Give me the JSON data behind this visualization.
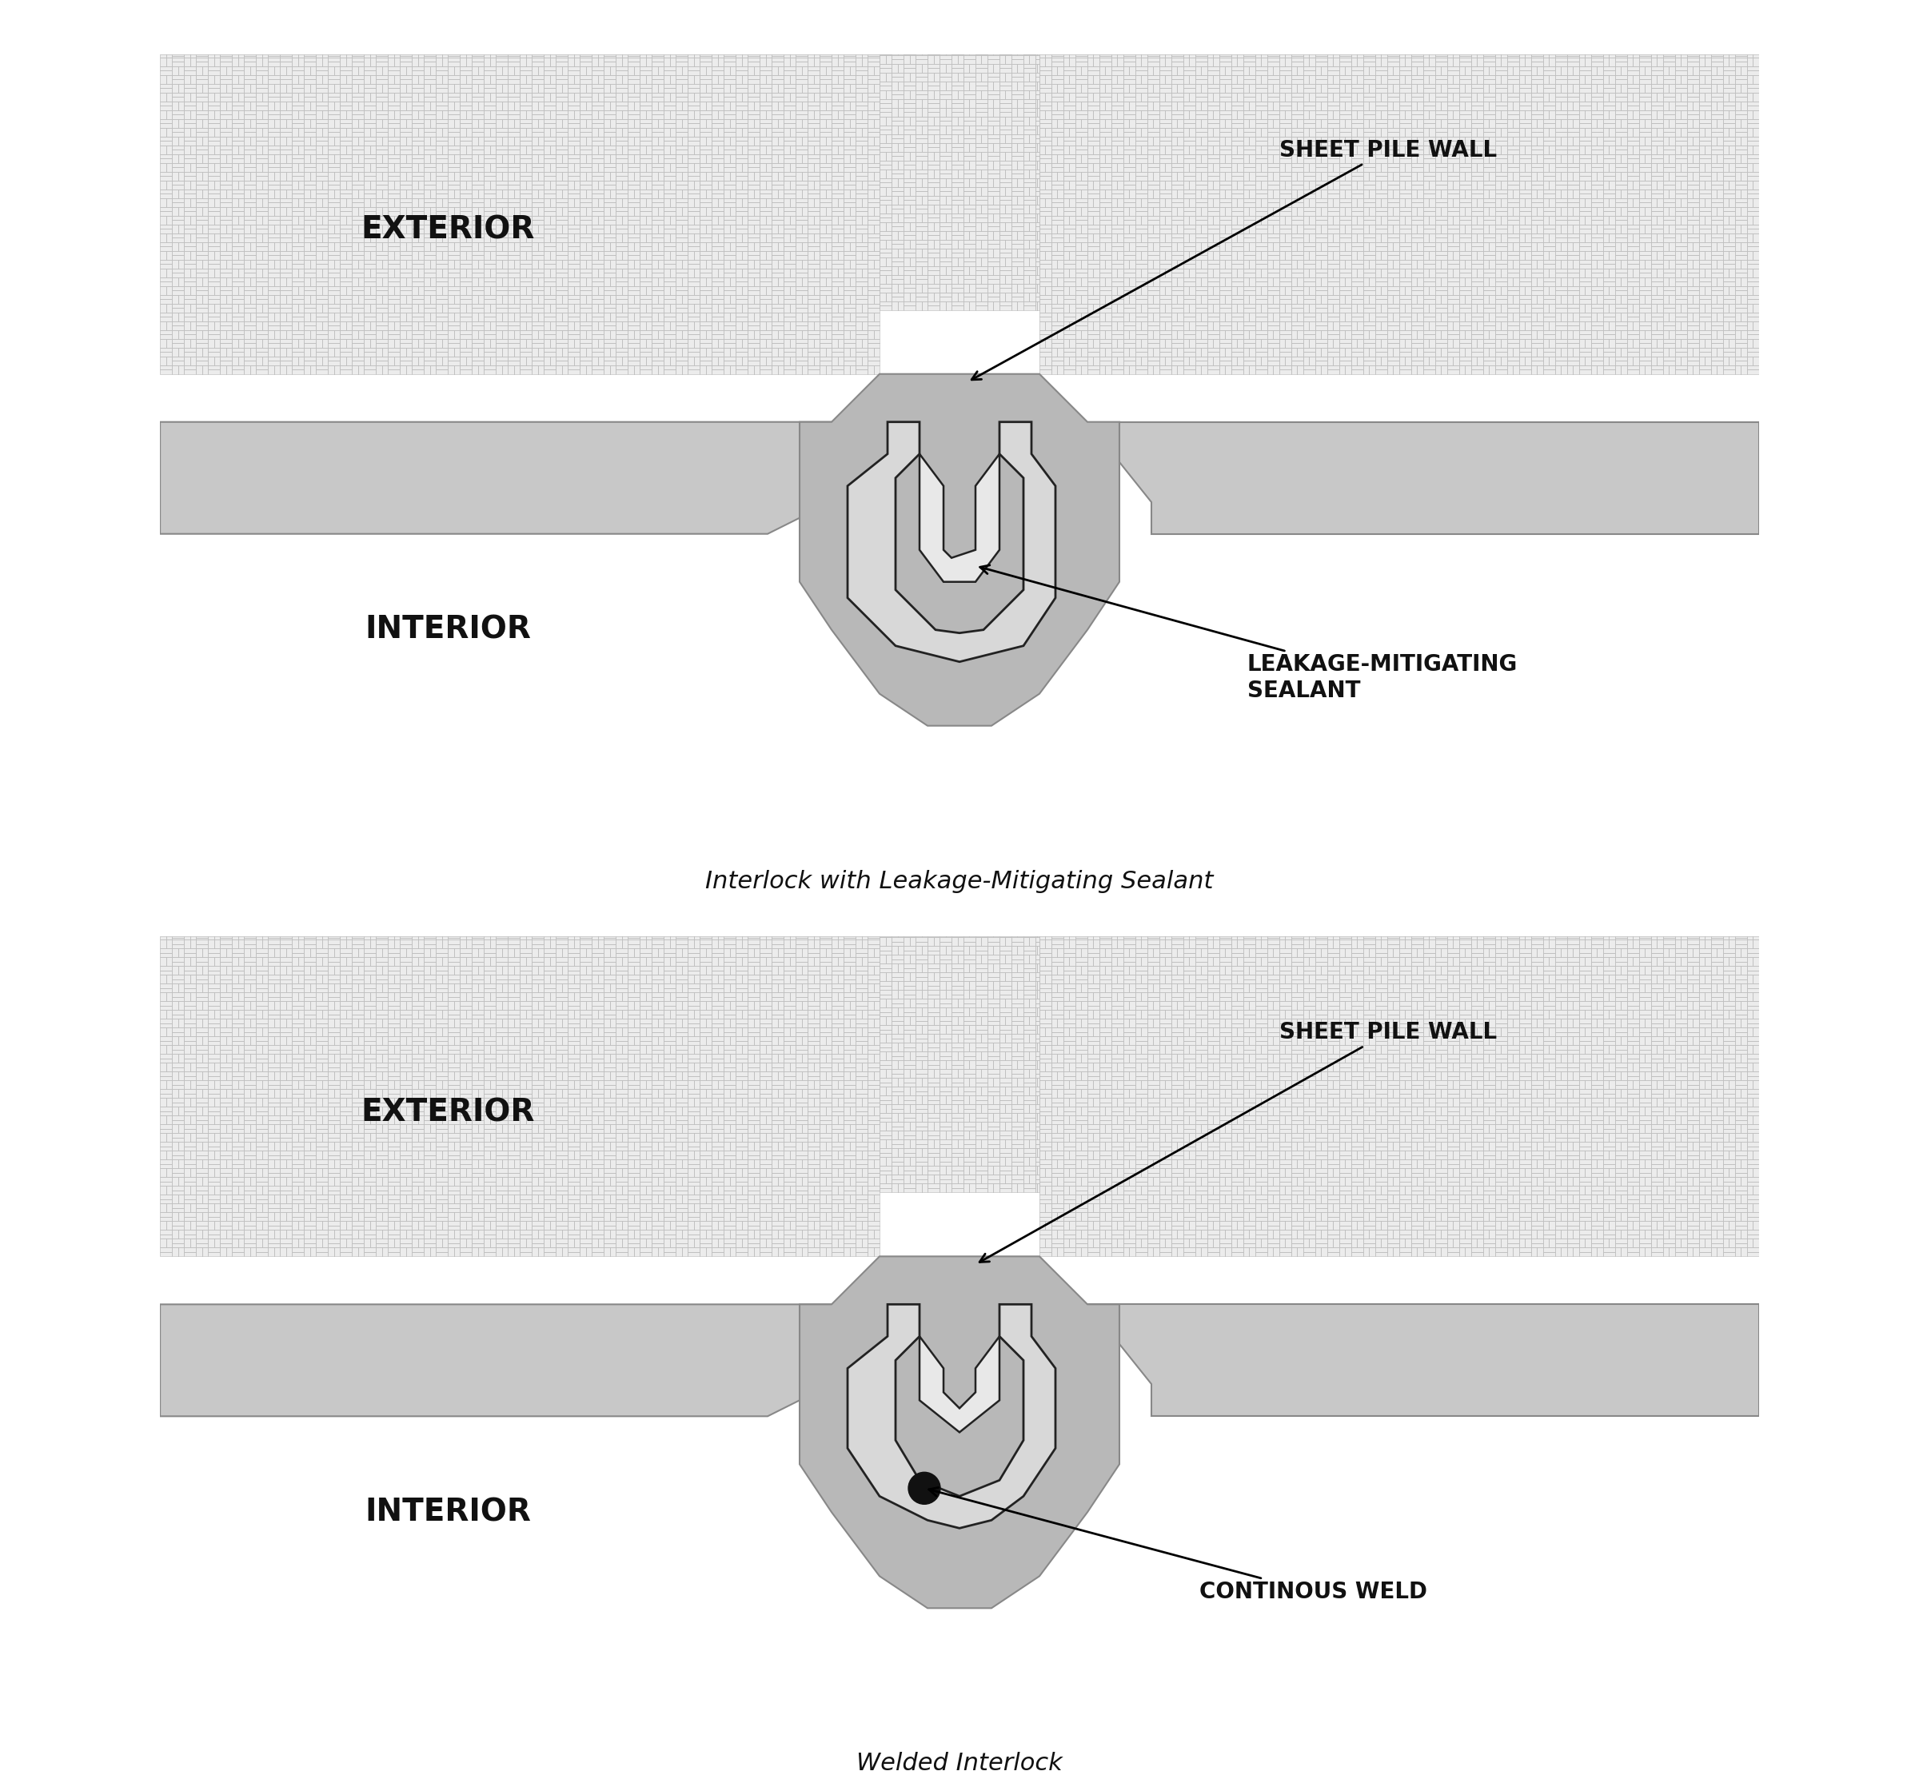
{
  "bg_color": "#ffffff",
  "hatch_color": "#cccccc",
  "hatch_edge_color": "#bbbbbb",
  "steel_color": "#c0c0c0",
  "steel_dark": "#a0a0a0",
  "sealant_color": "#b0b0b0",
  "weld_color": "#1a1a1a",
  "line_color": "#111111",
  "text_color": "#111111",
  "label_top": "Interlock with Leakage-Mitigating Sealant",
  "label_bottom": "Welded Interlock",
  "exterior_label": "EXTERIOR",
  "interior_label": "INTERIOR",
  "sheet_pile_label": "SHEET PILE WALL",
  "sealant_label": "LEAKAGE-MITIGATING\nSEALANT",
  "weld_label": "CONTINOUS WELD"
}
